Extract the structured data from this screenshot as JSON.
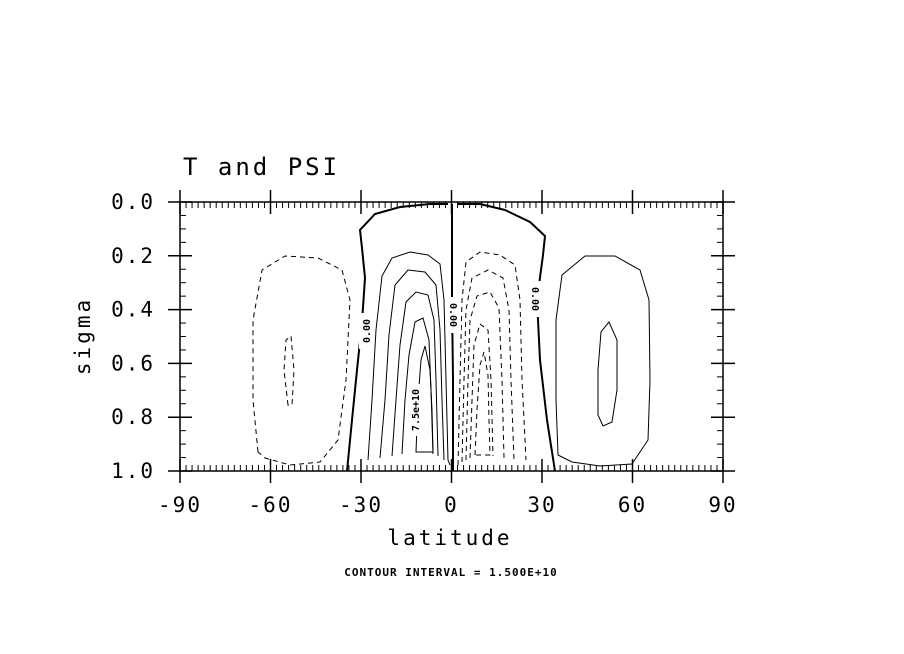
{
  "chart_data": {
    "type": "contour",
    "title": "T and PSI",
    "xlabel": "latitude",
    "ylabel": "sigma",
    "xlim": [
      -90,
      90
    ],
    "ylim": [
      1.0,
      0.0
    ],
    "x_ticks": [
      "-90",
      "-60",
      "-30",
      "0",
      "30",
      "60",
      "90"
    ],
    "x_tick_values": [
      -90,
      -60,
      -30,
      0,
      30,
      60,
      90
    ],
    "y_ticks": [
      "0.0",
      "0.2",
      "0.4",
      "0.6",
      "0.8",
      "1.0"
    ],
    "y_tick_values": [
      0.0,
      0.2,
      0.4,
      0.6,
      0.8,
      1.0
    ],
    "contour_interval_note": "CONTOUR INTERVAL = 1.500E+10",
    "contour_interval": 15000000000.0,
    "contour_labels": [
      {
        "text": "0.00",
        "x": -31,
        "y": 0.48
      },
      {
        "text": "7.5e+10",
        "x": -13,
        "y": 0.77
      },
      {
        "text": "0.00",
        "x": 0,
        "y": 0.42
      },
      {
        "text": "0.00",
        "x": 27,
        "y": 0.36
      }
    ],
    "negative_contours": "dashed",
    "zero_contour": "thick"
  }
}
